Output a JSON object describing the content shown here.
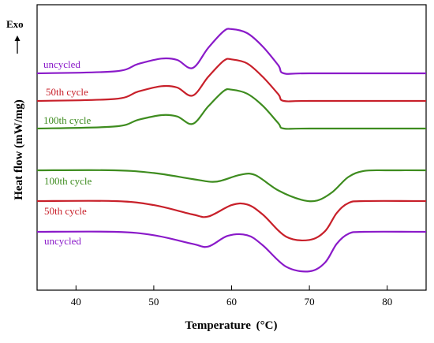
{
  "chart_data": {
    "type": "line",
    "xlabel": "Temperature",
    "xlabel_unit": "(°C)",
    "ylabel": "Heat flow  (mW/mg)",
    "direction_label": "Exo",
    "xlim": [
      35,
      85
    ],
    "x_ticks": [
      40,
      50,
      60,
      70,
      80
    ],
    "y_ticks_labeled": false,
    "grid": false,
    "legend": "none",
    "groups": [
      {
        "segment": "upper",
        "series": [
          {
            "name": "uncycled",
            "color": "#8A1AC9",
            "x": [
              35,
              45,
              48,
              51,
              53,
              55,
              57,
              59,
              60,
              62,
              64,
              66,
              66.7,
              70,
              85
            ],
            "y": [
              0,
              0.03,
              0.14,
              0.22,
              0.2,
              0.08,
              0.38,
              0.63,
              0.66,
              0.6,
              0.4,
              0.12,
              0,
              0,
              0
            ]
          },
          {
            "name": "50th cycle",
            "color": "#C8202A",
            "x": [
              35,
              45,
              48,
              51,
              53,
              55,
              57,
              59,
              60,
              62,
              64,
              66,
              66.7,
              70,
              85
            ],
            "y": [
              0,
              0.03,
              0.14,
              0.22,
              0.2,
              0.08,
              0.36,
              0.6,
              0.62,
              0.56,
              0.36,
              0.1,
              0,
              0,
              0
            ]
          },
          {
            "name": "100th cycle",
            "color": "#3E8C1F",
            "x": [
              35,
              45,
              48,
              51,
              53,
              55,
              57,
              59,
              60,
              62,
              64,
              66,
              66.7,
              70,
              85
            ],
            "y": [
              0,
              0.03,
              0.13,
              0.2,
              0.18,
              0.07,
              0.33,
              0.56,
              0.58,
              0.52,
              0.34,
              0.08,
              0,
              0,
              0
            ]
          }
        ]
      },
      {
        "segment": "lower",
        "series": [
          {
            "name": "100th cycle",
            "color": "#3E8C1F",
            "x": [
              35,
              45,
              50,
              55,
              58,
              61,
              63,
              66,
              69,
              71,
              73,
              75,
              77,
              80,
              85
            ],
            "y": [
              0,
              0,
              -0.04,
              -0.13,
              -0.17,
              -0.07,
              -0.07,
              -0.3,
              -0.44,
              -0.45,
              -0.32,
              -0.1,
              -0.01,
              0,
              0
            ]
          },
          {
            "name": "50th cycle",
            "color": "#C8202A",
            "x": [
              35,
              45,
              50,
              55,
              57,
              60,
              62,
              64,
              67,
              70,
              72,
              73.5,
              75,
              77,
              85
            ],
            "y": [
              0,
              0,
              -0.06,
              -0.2,
              -0.23,
              -0.06,
              -0.05,
              -0.2,
              -0.53,
              -0.58,
              -0.45,
              -0.18,
              -0.03,
              0,
              0
            ]
          },
          {
            "name": "uncycled",
            "color": "#8A1AC9",
            "x": [
              35,
              45,
              50,
              55,
              57,
              59.5,
              62,
              64,
              67,
              70,
              72,
              73.5,
              75,
              77,
              85
            ],
            "y": [
              0,
              0,
              -0.05,
              -0.18,
              -0.22,
              -0.06,
              -0.05,
              -0.2,
              -0.52,
              -0.59,
              -0.46,
              -0.18,
              -0.03,
              0,
              0
            ]
          }
        ]
      }
    ]
  }
}
